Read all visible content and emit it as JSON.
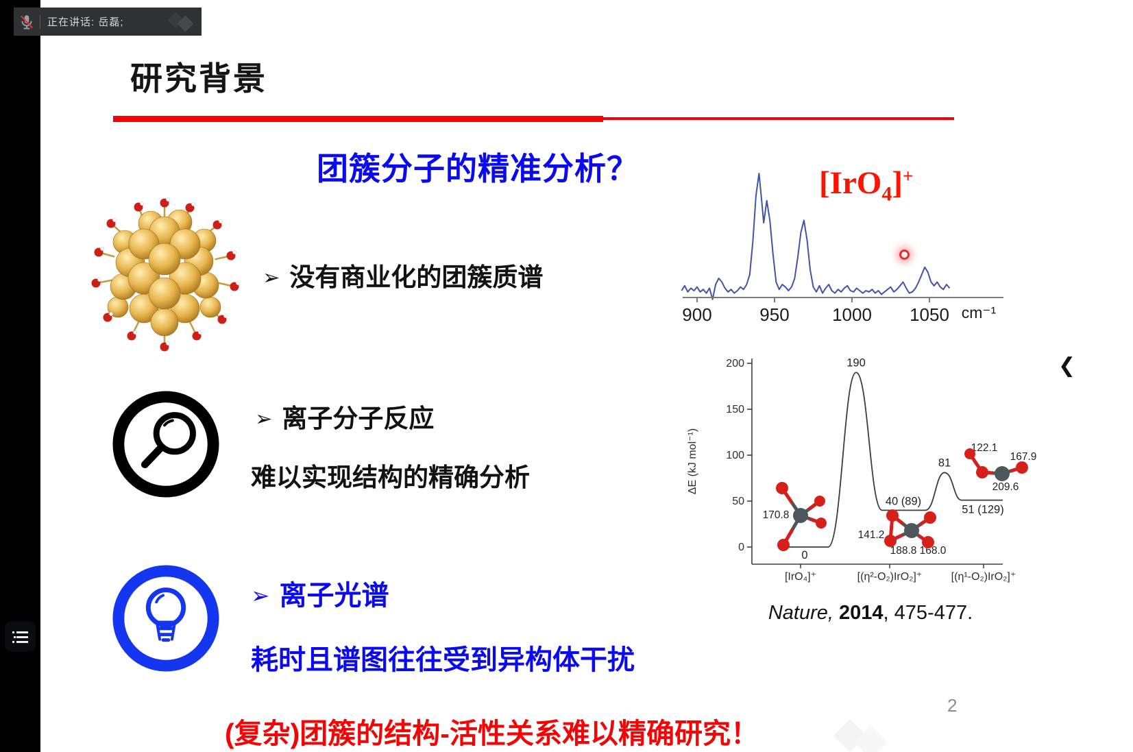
{
  "meeting_overlay": {
    "speaking_label": "正在讲话: 岳磊;",
    "mic_icon": "muted-microphone-icon",
    "list_button_icon": "list-icon"
  },
  "nav": {
    "prev_arrow": "❮",
    "page_number": "2"
  },
  "colors": {
    "accent_red": "#f40404",
    "accent_blue": "#0a0aee",
    "iro4_red": "#fb1403",
    "spectrum_line": "#4053a8",
    "bar_bg": "#2f3233"
  },
  "slide": {
    "title": "研究背景",
    "question": "团簇分子的精准分析？",
    "bullet1": {
      "marker": "➢",
      "text": "没有商业化的团簇质谱"
    },
    "bullet2": {
      "marker": "➢",
      "text": "离子分子反应",
      "sub": "难以实现结构的精确分析"
    },
    "bullet3": {
      "marker": "➢",
      "text": "离子光谱",
      "sub": "耗时且谱图往往受到异构体干扰"
    },
    "conclusion": "(复杂)团簇的结构-活性关系难以精确研究！",
    "citation": {
      "journal": "Nature,",
      "year": " 2014",
      "pages": ", 475-477."
    }
  },
  "chart_data": [
    {
      "type": "line",
      "title": "IR spectrum of [IrO4]+",
      "annotation": {
        "prefix": "[IrO",
        "sub": "4",
        "close": "]",
        "sup": "+"
      },
      "xlabel": "cm⁻¹",
      "x_ticks": [
        "900",
        "950",
        "1000",
        "1050"
      ],
      "x_tick_values": [
        900,
        950,
        1000,
        1050
      ],
      "xlim": [
        890,
        1064
      ],
      "line_color": "#4053a8",
      "laser_pointer_cm": 1034,
      "points": [
        [
          890,
          0.05
        ],
        [
          892,
          0.09
        ],
        [
          894,
          0.04
        ],
        [
          896,
          0.07
        ],
        [
          898,
          0.05
        ],
        [
          900,
          0.08
        ],
        [
          902,
          0.04
        ],
        [
          904,
          0.06
        ],
        [
          906,
          0.03
        ],
        [
          908,
          0.07
        ],
        [
          910,
          -0.02
        ],
        [
          912,
          0.1
        ],
        [
          914,
          0.15
        ],
        [
          916,
          0.12
        ],
        [
          918,
          0.07
        ],
        [
          920,
          0.04
        ],
        [
          922,
          0.06
        ],
        [
          924,
          0.03
        ],
        [
          926,
          0.05
        ],
        [
          928,
          0.08
        ],
        [
          930,
          0.06
        ],
        [
          932,
          0.1
        ],
        [
          934,
          0.18
        ],
        [
          936,
          0.45
        ],
        [
          938,
          0.82
        ],
        [
          940,
          1.0
        ],
        [
          942,
          0.74
        ],
        [
          943,
          0.6
        ],
        [
          945,
          0.78
        ],
        [
          947,
          0.62
        ],
        [
          949,
          0.35
        ],
        [
          951,
          0.12
        ],
        [
          953,
          0.06
        ],
        [
          955,
          0.1
        ],
        [
          957,
          0.08
        ],
        [
          959,
          0.05
        ],
        [
          961,
          0.08
        ],
        [
          963,
          0.15
        ],
        [
          965,
          0.32
        ],
        [
          967,
          0.52
        ],
        [
          969,
          0.62
        ],
        [
          971,
          0.46
        ],
        [
          973,
          0.22
        ],
        [
          975,
          0.08
        ],
        [
          977,
          0.04
        ],
        [
          979,
          0.09
        ],
        [
          981,
          0.03
        ],
        [
          983,
          0.07
        ],
        [
          985,
          0.1
        ],
        [
          987,
          0.05
        ],
        [
          989,
          0.03
        ],
        [
          991,
          0.06
        ],
        [
          993,
          0.04
        ],
        [
          995,
          0.07
        ],
        [
          997,
          0.09
        ],
        [
          999,
          0.05
        ],
        [
          1001,
          0.04
        ],
        [
          1003,
          0.07
        ],
        [
          1005,
          0.05
        ],
        [
          1007,
          0.03
        ],
        [
          1009,
          0.05
        ],
        [
          1011,
          0.04
        ],
        [
          1013,
          0.06
        ],
        [
          1015,
          0.03
        ],
        [
          1017,
          0.05
        ],
        [
          1019,
          0.02
        ],
        [
          1021,
          0.04
        ],
        [
          1023,
          0.06
        ],
        [
          1025,
          0.08
        ],
        [
          1027,
          0.04
        ],
        [
          1029,
          0.06
        ],
        [
          1031,
          0.09
        ],
        [
          1033,
          0.12
        ],
        [
          1035,
          0.07
        ],
        [
          1037,
          0.03
        ],
        [
          1039,
          0.04
        ],
        [
          1041,
          0.07
        ],
        [
          1043,
          0.12
        ],
        [
          1045,
          0.18
        ],
        [
          1047,
          0.24
        ],
        [
          1049,
          0.2
        ],
        [
          1051,
          0.12
        ],
        [
          1053,
          0.09
        ],
        [
          1055,
          0.12
        ],
        [
          1057,
          0.08
        ],
        [
          1059,
          0.06
        ],
        [
          1061,
          0.1
        ],
        [
          1063,
          0.07
        ]
      ]
    },
    {
      "type": "line",
      "subtype": "reaction-energy-profile",
      "ylabel": "ΔE (kJ mol⁻¹)",
      "y_ticks": [
        "0",
        "50",
        "100",
        "150",
        "200"
      ],
      "y_tick_values": [
        0,
        50,
        100,
        150,
        200
      ],
      "ylim": [
        0,
        210
      ],
      "species": [
        "[IrO₄]⁺",
        "[(η²-O₂)IrO₂]⁺",
        "[(η¹-O₂)IrO₂]⁺"
      ],
      "stationary_points": [
        {
          "kind": "minimum",
          "E": 0,
          "label": "0"
        },
        {
          "kind": "transition-state",
          "E": 190,
          "label": "190"
        },
        {
          "kind": "minimum",
          "E": 40,
          "label": "40 (89)"
        },
        {
          "kind": "transition-state",
          "E": 81,
          "label": "81"
        },
        {
          "kind": "minimum",
          "E": 51,
          "label": "51 (129)"
        }
      ],
      "bond_lengths_pm": {
        "iro4": [
          "170.8"
        ],
        "eta2_o2_iro2": [
          "141.2",
          "188.8",
          "168.0"
        ],
        "eta1_o2_iro2": [
          "122.1",
          "167.9",
          "209.6"
        ]
      },
      "citation": "Nature, 2014, 475-477."
    }
  ]
}
